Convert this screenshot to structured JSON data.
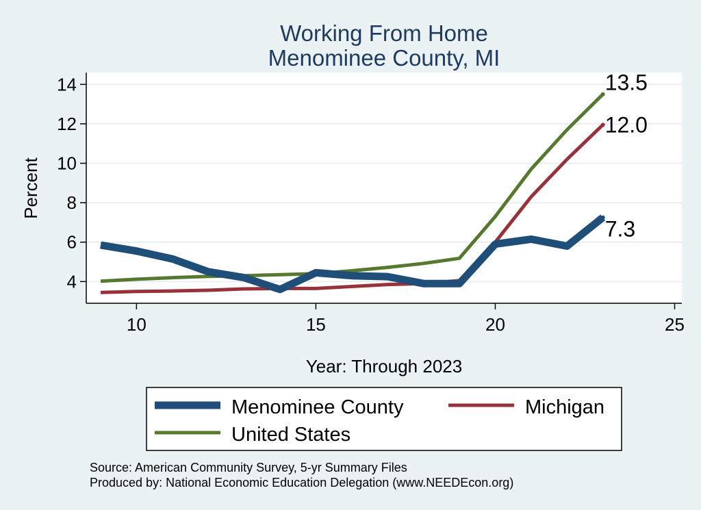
{
  "chart_data": {
    "type": "line",
    "title": [
      "Working From Home",
      "Menominee County, MI"
    ],
    "xlabel": "Year: Through 2023",
    "ylabel": "Percent",
    "xlim": [
      8.6,
      25.2
    ],
    "ylim": [
      2.9,
      14.6
    ],
    "xticks": [
      10,
      15,
      20,
      25
    ],
    "yticks": [
      4,
      6,
      8,
      10,
      12,
      14
    ],
    "grid": true,
    "x": [
      9,
      10,
      11,
      12,
      13,
      14,
      15,
      16,
      17,
      18,
      19,
      20,
      21,
      22,
      23
    ],
    "series": [
      {
        "name": "Menominee County",
        "color": "#1f4e79",
        "line_width": 11,
        "values": [
          5.85,
          5.55,
          5.15,
          4.5,
          4.2,
          3.6,
          4.45,
          4.3,
          4.25,
          3.9,
          3.9,
          5.9,
          6.15,
          5.8,
          7.25
        ],
        "end_label": "7.3"
      },
      {
        "name": "Michigan",
        "color": "#96333a",
        "line_width": 5,
        "values": [
          3.45,
          3.5,
          3.52,
          3.56,
          3.63,
          3.65,
          3.65,
          3.75,
          3.85,
          3.9,
          4.05,
          6.0,
          8.3,
          10.2,
          11.95
        ],
        "end_label": "12.0"
      },
      {
        "name": "United States",
        "color": "#56782f",
        "line_width": 5,
        "values": [
          4.02,
          4.12,
          4.2,
          4.26,
          4.3,
          4.35,
          4.4,
          4.55,
          4.72,
          4.92,
          5.18,
          7.3,
          9.7,
          11.7,
          13.5
        ],
        "end_label": "13.5"
      }
    ],
    "legend": {
      "placement": "bottom",
      "entries": [
        "Menominee County",
        "Michigan",
        "United States"
      ]
    }
  },
  "source": [
    "Source: American Community Survey, 5-yr Summary Files",
    "Produced by: National Economic Education Delegation (www.NEEDEcon.org)"
  ]
}
